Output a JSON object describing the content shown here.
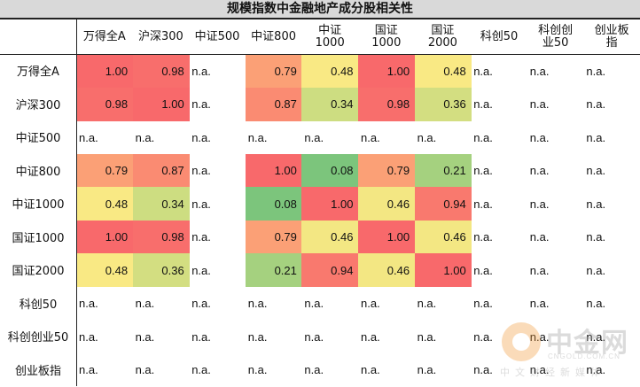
{
  "title": "规模指数中金融地产成分股相关性",
  "chart_data": {
    "type": "heatmap",
    "title": "规模指数中金融地产成分股相关性",
    "columns": [
      "万得全A",
      "沪深300",
      "中证500",
      "中证800",
      "中证\n1000",
      "国证\n1000",
      "国证\n2000",
      "科创50",
      "科创创\n业50",
      "创业板\n指"
    ],
    "rows": [
      "万得全A",
      "沪深300",
      "中证500",
      "中证800",
      "中证1000",
      "国证1000",
      "国证2000",
      "科创50",
      "科创创业50",
      "创业板指"
    ],
    "missing_label": "n.a.",
    "values": [
      [
        1.0,
        0.98,
        null,
        0.79,
        0.48,
        1.0,
        0.48,
        null,
        null,
        null
      ],
      [
        0.98,
        1.0,
        null,
        0.87,
        0.34,
        0.98,
        0.36,
        null,
        null,
        null
      ],
      [
        null,
        null,
        null,
        null,
        null,
        null,
        null,
        null,
        null,
        null
      ],
      [
        0.79,
        0.87,
        null,
        1.0,
        0.08,
        0.79,
        0.21,
        null,
        null,
        null
      ],
      [
        0.48,
        0.34,
        null,
        0.08,
        1.0,
        0.46,
        0.94,
        null,
        null,
        null
      ],
      [
        1.0,
        0.98,
        null,
        0.79,
        0.46,
        1.0,
        0.46,
        null,
        null,
        null
      ],
      [
        0.48,
        0.36,
        null,
        0.21,
        0.94,
        0.46,
        1.0,
        null,
        null,
        null
      ],
      [
        null,
        null,
        null,
        null,
        null,
        null,
        null,
        null,
        null,
        null
      ],
      [
        null,
        null,
        null,
        null,
        null,
        null,
        null,
        null,
        null,
        null
      ],
      [
        null,
        null,
        null,
        null,
        null,
        null,
        null,
        null,
        null,
        null
      ]
    ],
    "color_scale": {
      "low": "#63be7b",
      "mid": "#ffeb84",
      "high": "#f8696b",
      "range": [
        0,
        1
      ]
    }
  },
  "watermark": {
    "brand": "中金网",
    "domain": "CNGOLD.COM.CN",
    "slogan": "中文财经新媒体"
  }
}
